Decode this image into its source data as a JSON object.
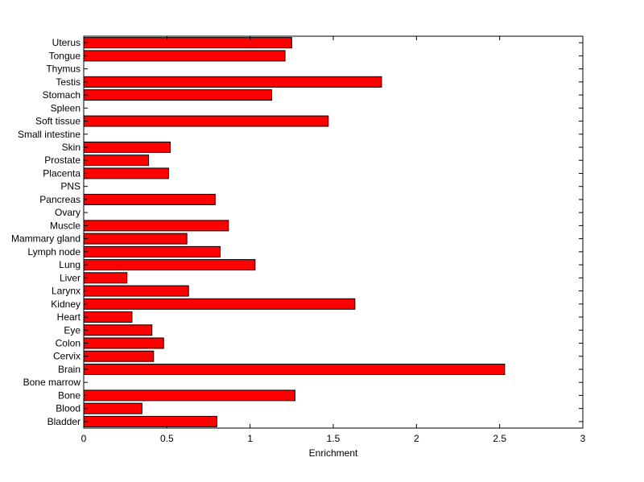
{
  "chart_data": {
    "type": "bar",
    "orientation": "horizontal",
    "categories": [
      "Bladder",
      "Blood",
      "Bone",
      "Bone marrow",
      "Brain",
      "Cervix",
      "Colon",
      "Eye",
      "Heart",
      "Kidney",
      "Larynx",
      "Liver",
      "Lung",
      "Lymph node",
      "Mammary gland",
      "Muscle",
      "Ovary",
      "Pancreas",
      "PNS",
      "Placenta",
      "Prostate",
      "Skin",
      "Small intestine",
      "Soft tissue",
      "Spleen",
      "Stomach",
      "Testis",
      "Thymus",
      "Tongue",
      "Uterus"
    ],
    "values": [
      0.8,
      0.35,
      1.27,
      0,
      2.53,
      0.42,
      0.48,
      0.41,
      0.29,
      1.63,
      0.63,
      0.26,
      1.03,
      0.82,
      0.62,
      0.87,
      0,
      0.79,
      0,
      0.51,
      0.39,
      0.52,
      0,
      1.47,
      0,
      1.13,
      1.79,
      0,
      1.21,
      1.25
    ],
    "xlabel": "Enrichment",
    "ylabel": "",
    "title": "",
    "xlim": [
      0,
      3
    ],
    "xticks": [
      "0",
      "0.5",
      "1",
      "1.5",
      "2",
      "2.5",
      "3"
    ],
    "grid": false,
    "bar_color": "#ff0000",
    "bar_edge_color": "#000000"
  }
}
